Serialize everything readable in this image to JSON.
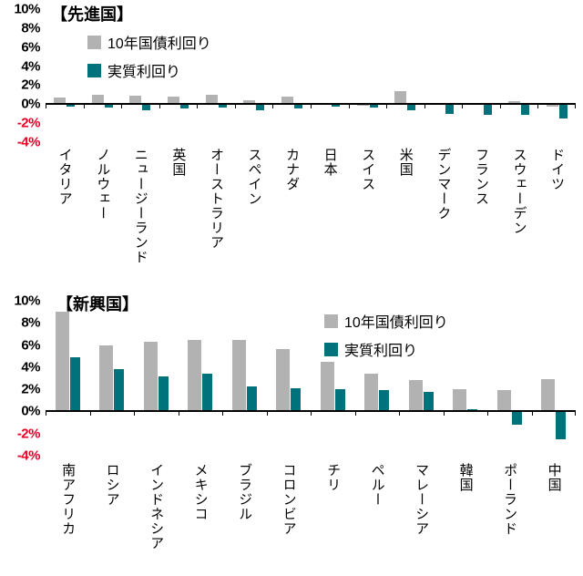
{
  "page": {
    "background": "#ffffff"
  },
  "colors": {
    "bar_gray": "#b2b2b2",
    "bar_teal": "#00727b",
    "negative_tick": "#e60026",
    "axis_line": "#000000"
  },
  "chart_data": [
    {
      "type": "bar",
      "title": "【先進国】",
      "categories": [
        "イタリア",
        "ノルウェー",
        "ニュージーランド",
        "英国",
        "オーストラリア",
        "スペイン",
        "カナダ",
        "日本",
        "スイス",
        "米国",
        "デンマーク",
        "フランス",
        "スウェーデン",
        "ドイツ"
      ],
      "series": [
        {
          "name": "10年国債利回り",
          "color": "#b2b2b2",
          "values": [
            0.7,
            1.0,
            0.9,
            0.8,
            1.0,
            0.4,
            0.8,
            0.1,
            -0.2,
            1.4,
            -0.1,
            -0.1,
            0.3,
            -0.3
          ]
        },
        {
          "name": "実質利回り",
          "color": "#00727b",
          "values": [
            -0.3,
            -0.4,
            -0.6,
            -0.5,
            -0.4,
            -0.6,
            -0.5,
            -0.3,
            -0.4,
            -0.6,
            -1.0,
            -1.1,
            -1.1,
            -1.5
          ]
        }
      ],
      "ylim": [
        -4,
        10
      ],
      "yticks": [
        10,
        8,
        6,
        4,
        2,
        0,
        -2,
        -4
      ],
      "ytick_suffix": "%",
      "grid": false,
      "legend_position": "top-left-inset"
    },
    {
      "type": "bar",
      "title": "【新興国】",
      "categories": [
        "南アフリカ",
        "ロシア",
        "インドネシア",
        "メキシコ",
        "ブラジル",
        "コロンビア",
        "チリ",
        "ペルー",
        "マレーシア",
        "韓国",
        "ポーランド",
        "中国"
      ],
      "series": [
        {
          "name": "10年国債利回り",
          "color": "#b2b2b2",
          "values": [
            9.0,
            6.0,
            6.3,
            6.5,
            6.5,
            5.6,
            4.5,
            3.4,
            2.8,
            2.0,
            1.9,
            2.9
          ]
        },
        {
          "name": "実質利回り",
          "color": "#00727b",
          "values": [
            4.9,
            3.8,
            3.2,
            3.4,
            2.3,
            2.1,
            2.0,
            1.9,
            1.8,
            0.2,
            -1.2,
            -2.5
          ]
        }
      ],
      "ylim": [
        -4,
        10
      ],
      "yticks": [
        10,
        8,
        6,
        4,
        2,
        0,
        -2,
        -4
      ],
      "ytick_suffix": "%",
      "grid": false,
      "legend_position": "top-right-inset"
    }
  ]
}
